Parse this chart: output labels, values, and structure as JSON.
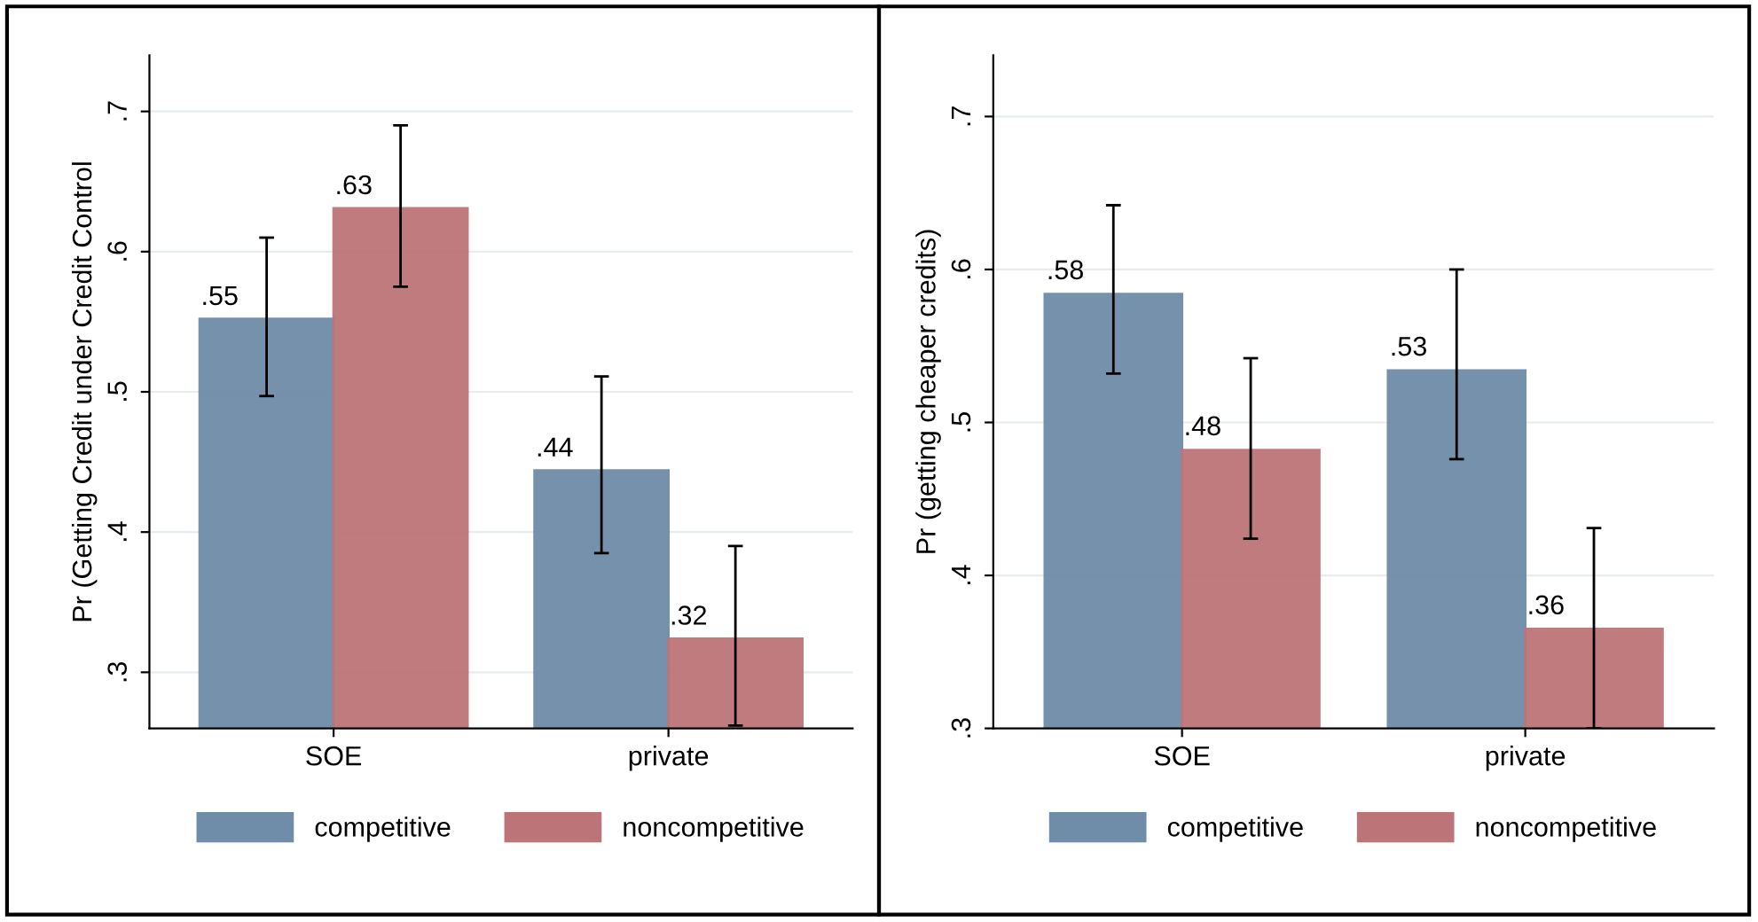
{
  "chart_data": [
    {
      "type": "bar",
      "ylabel": "Pr (Getting Credit under Credit Control",
      "categories": [
        "SOE",
        "private"
      ],
      "ylim": [
        0.26,
        0.74
      ],
      "yticks": [
        {
          "value": 0.3,
          "label": ".3"
        },
        {
          "value": 0.4,
          "label": ".4"
        },
        {
          "value": 0.5,
          "label": ".5"
        },
        {
          "value": 0.6,
          "label": ".6"
        },
        {
          "value": 0.7,
          "label": ".7"
        }
      ],
      "grid": "y",
      "legend": "bottom",
      "series": [
        {
          "name": "competitive",
          "color": "#6f8ca8",
          "values": [
            0.552,
            0.444
          ],
          "errors": [
            [
              0.497,
              0.61
            ],
            [
              0.385,
              0.511
            ]
          ],
          "value_labels": [
            ".55",
            ".44"
          ]
        },
        {
          "name": "noncompetitive",
          "color": "#bd7479",
          "values": [
            0.631,
            0.324
          ],
          "errors": [
            [
              0.575,
              0.69
            ],
            [
              0.262,
              0.39
            ]
          ],
          "value_labels": [
            ".63",
            ".32"
          ]
        }
      ]
    },
    {
      "type": "bar",
      "ylabel": "Pr (getting cheaper credits)",
      "categories": [
        "SOE",
        "private"
      ],
      "ylim": [
        0.3,
        0.74
      ],
      "yticks": [
        {
          "value": 0.3,
          "label": ".3"
        },
        {
          "value": 0.4,
          "label": ".4"
        },
        {
          "value": 0.5,
          "label": ".5"
        },
        {
          "value": 0.6,
          "label": ".6"
        },
        {
          "value": 0.7,
          "label": ".7"
        }
      ],
      "grid": "y",
      "legend": "bottom",
      "series": [
        {
          "name": "competitive",
          "color": "#6f8ca8",
          "values": [
            0.584,
            0.534
          ],
          "errors": [
            [
              0.532,
              0.642
            ],
            [
              0.476,
              0.6
            ]
          ],
          "value_labels": [
            ".58",
            ".53"
          ]
        },
        {
          "name": "noncompetitive",
          "color": "#bd7479",
          "values": [
            0.482,
            0.365
          ],
          "errors": [
            [
              0.424,
              0.542
            ],
            [
              0.3,
              0.431
            ]
          ],
          "value_labels": [
            ".48",
            ".36"
          ]
        }
      ]
    }
  ]
}
